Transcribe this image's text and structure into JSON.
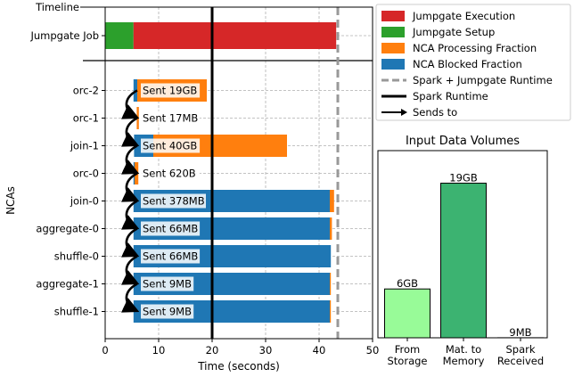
{
  "chart_data": [
    {
      "type": "bar",
      "orientation": "horizontal",
      "xlabel": "Time (seconds)",
      "ylabel": "NCAs",
      "xlim": [
        0,
        50
      ],
      "xticks": [
        0,
        10,
        20,
        30,
        40,
        50
      ],
      "spark_runtime": 20,
      "spark_jumpgate_runtime": 43.5,
      "timeline": {
        "label": "Timeline",
        "row": "Jumpgate Job",
        "setup": [
          0,
          5.3
        ],
        "execution": [
          5.3,
          43.2
        ]
      },
      "rows": [
        {
          "name": "orc-2",
          "blocked": [
            5.3,
            6.0
          ],
          "processing": [
            6.0,
            19.0
          ],
          "sent": "Sent 19GB"
        },
        {
          "name": "orc-1",
          "blocked": null,
          "processing": [
            5.9,
            6.3
          ],
          "sent": "Sent 17MB"
        },
        {
          "name": "join-1",
          "blocked": [
            5.4,
            9.0
          ],
          "processing": [
            9.0,
            34.0
          ],
          "sent": "Sent 40GB"
        },
        {
          "name": "orc-0",
          "blocked": [
            5.3,
            5.5
          ],
          "processing": [
            5.5,
            6.2
          ],
          "sent": "Sent 620B"
        },
        {
          "name": "join-0",
          "blocked": [
            5.3,
            42.0
          ],
          "processing": [
            42.0,
            42.8
          ],
          "sent": "Sent 378MB"
        },
        {
          "name": "aggregate-0",
          "blocked": [
            5.3,
            42.0
          ],
          "processing": [
            42.0,
            42.4
          ],
          "sent": "Sent 66MB"
        },
        {
          "name": "shuffle-0",
          "blocked": [
            5.3,
            42.2
          ],
          "processing": null,
          "sent": "Sent 66MB"
        },
        {
          "name": "aggregate-1",
          "blocked": [
            5.3,
            42.0
          ],
          "processing": [
            42.0,
            42.2
          ],
          "sent": "Sent 9MB"
        },
        {
          "name": "shuffle-1",
          "blocked": [
            5.3,
            42.0
          ],
          "processing": [
            42.0,
            42.2
          ],
          "sent": "Sent 9MB"
        }
      ],
      "sends_to": [
        [
          "orc-2",
          "orc-1"
        ],
        [
          "orc-1",
          "join-1"
        ],
        [
          "join-1",
          "orc-0"
        ],
        [
          "orc-0",
          "join-0"
        ],
        [
          "join-0",
          "aggregate-0"
        ],
        [
          "aggregate-0",
          "shuffle-0"
        ],
        [
          "shuffle-0",
          "aggregate-1"
        ],
        [
          "aggregate-1",
          "shuffle-1"
        ]
      ],
      "legend": [
        {
          "label": "Jumpgate Execution",
          "style": "patch",
          "color": "#d62728"
        },
        {
          "label": "Jumpgate Setup",
          "style": "patch",
          "color": "#2ca02c"
        },
        {
          "label": "NCA Processing Fraction",
          "style": "patch",
          "color": "#ff7f0e"
        },
        {
          "label": "NCA Blocked Fraction",
          "style": "patch",
          "color": "#1f77b4"
        },
        {
          "label": "Spark + Jumpgate Runtime",
          "style": "dashed",
          "color": "#999999"
        },
        {
          "label": "Spark Runtime",
          "style": "solid",
          "color": "#000000"
        },
        {
          "label": "Sends to",
          "style": "arrow",
          "color": "#000000"
        }
      ],
      "colors": {
        "execution": "#d62728",
        "setup": "#2ca02c",
        "processing": "#ff7f0e",
        "blocked": "#1f77b4"
      }
    },
    {
      "type": "bar",
      "title": "Input Data Volumes",
      "categories": [
        "From Storage",
        "Mat. to Memory",
        "Spark Received"
      ],
      "category_lines": [
        [
          "From",
          "Storage"
        ],
        [
          "Mat. to",
          "Memory"
        ],
        [
          "Spark",
          "Received"
        ]
      ],
      "values_gb": [
        6,
        19,
        0.009
      ],
      "value_labels": [
        "6GB",
        "19GB",
        "9MB"
      ],
      "colors": [
        "#98fb98",
        "#3cb371",
        "#ffffff"
      ],
      "ylim": [
        0,
        23
      ]
    }
  ]
}
